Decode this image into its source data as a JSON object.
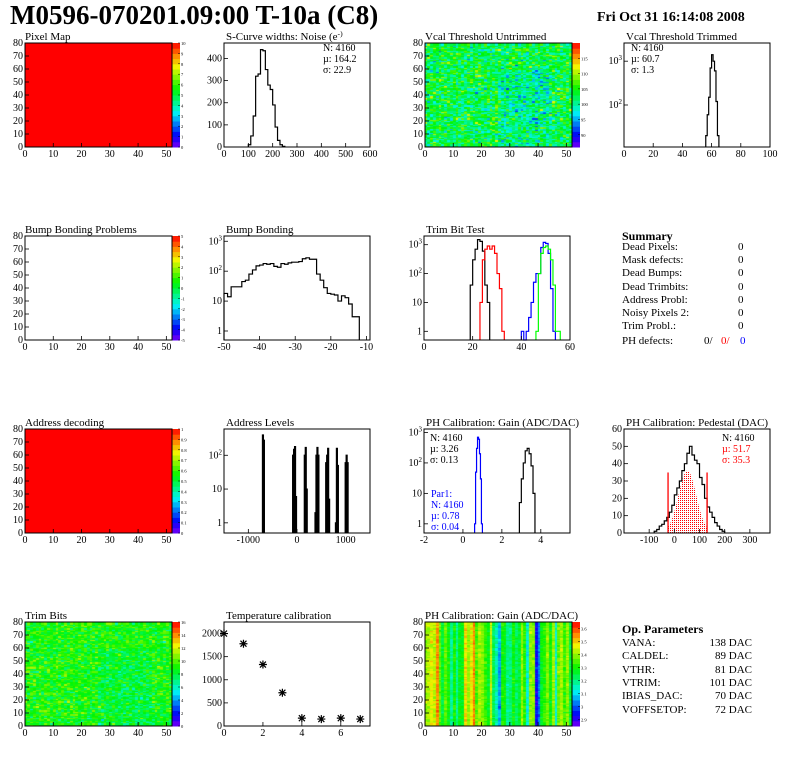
{
  "header": {
    "title": "M0596-070201.09:00 T-10a (C8)",
    "date": "Fri Oct 31 16:14:08 2008"
  },
  "summary": {
    "title": "Summary",
    "rows": [
      {
        "label": "Dead Pixels:",
        "value": "0"
      },
      {
        "label": "Mask defects:",
        "value": "0"
      },
      {
        "label": "Dead Bumps:",
        "value": "0"
      },
      {
        "label": "Dead Trimbits:",
        "value": "0"
      },
      {
        "label": "Address Probl:",
        "value": "0"
      },
      {
        "label": "Noisy Pixels 2:",
        "value": "0"
      },
      {
        "label": "Trim Probl.:",
        "value": "0"
      }
    ],
    "ph_defects": {
      "label": "PH defects:",
      "v1": "0/",
      "v2": "0/",
      "v3": "0",
      "c1": "#000000",
      "c2": "#ff0000",
      "c3": "#0000ff"
    }
  },
  "op_params": {
    "title": "Op. Parameters",
    "rows": [
      {
        "label": "VANA:",
        "value": "138 DAC"
      },
      {
        "label": "CALDEL:",
        "value": "89 DAC"
      },
      {
        "label": "VTHR:",
        "value": "81 DAC"
      },
      {
        "label": "VTRIM:",
        "value": "101 DAC"
      },
      {
        "label": "IBIAS_DAC:",
        "value": "70 DAC"
      },
      {
        "label": "VOFFSETOP:",
        "value": "72 DAC"
      }
    ]
  },
  "chart_data": [
    {
      "type": "heatmap",
      "title": "Pixel Map",
      "xlim": [
        0,
        52
      ],
      "ylim": [
        0,
        80
      ],
      "zlim": [
        0,
        10
      ],
      "fill": "uniform",
      "value": 10,
      "xticks": [
        "0",
        "10",
        "20",
        "30",
        "40",
        "50"
      ],
      "yticks": [
        "0",
        "10",
        "20",
        "30",
        "40",
        "50",
        "60",
        "70",
        "80"
      ],
      "zticks": [
        "0",
        "1",
        "2",
        "3",
        "4",
        "5",
        "6",
        "7",
        "8",
        "9",
        "10"
      ]
    },
    {
      "type": "bar",
      "title": "S-Curve widths: Noise (e^-)",
      "xlim": [
        0,
        600
      ],
      "ylim": [
        0,
        470
      ],
      "log": false,
      "xticks": [
        "0",
        "100",
        "200",
        "300",
        "400",
        "500",
        "600"
      ],
      "yticks": [
        "0",
        "100",
        "200",
        "300",
        "400"
      ],
      "series": [
        {
          "color": "#000000",
          "x0": 100,
          "binw": 10,
          "counts": [
            10,
            50,
            140,
            320,
            330,
            440,
            435,
            350,
            280,
            260,
            190,
            90,
            30,
            10,
            3
          ]
        }
      ],
      "stats": [
        {
          "text": "N: 4160",
          "color": "#000000"
        },
        {
          "text": "µ: 164.2",
          "color": "#000000"
        },
        {
          "text": "σ: 22.9",
          "color": "#000000"
        }
      ]
    },
    {
      "type": "heatmap",
      "title": "Vcal Threshold Untrimmed",
      "xlim": [
        0,
        52
      ],
      "ylim": [
        0,
        80
      ],
      "zlim": [
        86,
        120
      ],
      "fill": "noisy",
      "mean": 103,
      "spread": 5,
      "xticks": [
        "0",
        "10",
        "20",
        "30",
        "40",
        "50"
      ],
      "yticks": [
        "0",
        "10",
        "20",
        "30",
        "40",
        "50",
        "60",
        "70",
        "80"
      ],
      "zticks": [
        "90",
        "95",
        "100",
        "105",
        "110",
        "115"
      ]
    },
    {
      "type": "bar",
      "title": "Vcal Threshold Trimmed",
      "xlim": [
        0,
        100
      ],
      "ylim": [
        11,
        2600
      ],
      "log": true,
      "xticks": [
        "0",
        "20",
        "40",
        "60",
        "80",
        "100"
      ],
      "yticks": [
        "10^2",
        "10^3"
      ],
      "series": [
        {
          "color": "#000000",
          "x0": 56,
          "binw": 1,
          "counts": [
            20,
            60,
            150,
            700,
            1400,
            1000,
            600,
            120,
            20
          ]
        }
      ],
      "stats": [
        {
          "text": "N: 4160",
          "color": "#000000"
        },
        {
          "text": "µ: 60.7",
          "color": "#000000"
        },
        {
          "text": "σ:  1.3",
          "color": "#000000"
        }
      ]
    },
    {
      "type": "heatmap",
      "title": "Bump Bonding Problems",
      "xlim": [
        0,
        52
      ],
      "ylim": [
        0,
        80
      ],
      "zlim": [
        -5,
        5
      ],
      "fill": "empty",
      "xticks": [
        "0",
        "10",
        "20",
        "30",
        "40",
        "50"
      ],
      "yticks": [
        "0",
        "10",
        "20",
        "30",
        "40",
        "50",
        "60",
        "70",
        "80"
      ],
      "zticks": [
        "-5",
        "-4",
        "-3",
        "-2",
        "-1",
        "0",
        "1",
        "2",
        "3",
        "4",
        "5"
      ]
    },
    {
      "type": "bar",
      "title": "Bump Bonding",
      "xlim": [
        -50,
        -9
      ],
      "ylim": [
        0.5,
        1500
      ],
      "log": true,
      "xticks": [
        "-50",
        "-40",
        "-30",
        "-20",
        "-10"
      ],
      "yticks": [
        "1",
        "10",
        "10^2",
        "10^3"
      ],
      "series": [
        {
          "color": "#000000",
          "x0": -50,
          "binw": 1,
          "counts": [
            18,
            14,
            30,
            30,
            30,
            45,
            50,
            80,
            110,
            150,
            160,
            180,
            170,
            180,
            145,
            135,
            180,
            170,
            190,
            200,
            200,
            210,
            260,
            280,
            250,
            250,
            80,
            50,
            28,
            18,
            17,
            16,
            10,
            15,
            13,
            8,
            3,
            3
          ]
        }
      ]
    },
    {
      "type": "bar",
      "title": "Trim Bit Test",
      "xlim": [
        0,
        60
      ],
      "ylim": [
        0.5,
        2000
      ],
      "log": true,
      "xticks": [
        "0",
        "20",
        "40",
        "60"
      ],
      "yticks": [
        "1",
        "10",
        "10^2",
        "10^3"
      ],
      "series": [
        {
          "color": "#000000",
          "x0": 19,
          "binw": 1,
          "counts": [
            40,
            300,
            700,
            1500,
            1300,
            600,
            40,
            10
          ]
        },
        {
          "color": "#ff0000",
          "x0": 23,
          "binw": 1,
          "counts": [
            10,
            300,
            700,
            900,
            700,
            900,
            500,
            100,
            30,
            1
          ]
        },
        {
          "color": "#0000ff",
          "x0": 40,
          "binw": 1,
          "counts": [
            1,
            0.5,
            1,
            3,
            10,
            50,
            100,
            100,
            800,
            1200,
            1100,
            500,
            30,
            1
          ]
        },
        {
          "color": "#00ff00",
          "x0": 46,
          "binw": 1,
          "counts": [
            1,
            100,
            500,
            800,
            900,
            700,
            300,
            40,
            1,
            1
          ]
        }
      ]
    },
    {
      "type": "heatmap",
      "title": "Address decoding",
      "xlim": [
        0,
        52
      ],
      "ylim": [
        0,
        80
      ],
      "zlim": [
        0,
        1
      ],
      "fill": "uniform",
      "value": 1,
      "xticks": [
        "0",
        "10",
        "20",
        "30",
        "40",
        "50"
      ],
      "yticks": [
        "0",
        "10",
        "20",
        "30",
        "40",
        "50",
        "60",
        "70",
        "80"
      ],
      "zticks": [
        "0",
        "0.1",
        "0.2",
        "0.3",
        "0.4",
        "0.5",
        "0.6",
        "0.7",
        "0.8",
        "0.9",
        "1"
      ]
    },
    {
      "type": "bar",
      "title": "Address Levels",
      "xlim": [
        -1500,
        1500
      ],
      "ylim": [
        0.5,
        600
      ],
      "log": true,
      "xticks": [
        "-1000",
        "0",
        "1000"
      ],
      "yticks": [
        "1",
        "10",
        "10^2"
      ],
      "spikes": {
        "color": "#000000",
        "binw": 20,
        "points": [
          [
            -700,
            400
          ],
          [
            -680,
            280
          ],
          [
            -80,
            100
          ],
          [
            -60,
            150
          ],
          [
            -40,
            180
          ],
          [
            -20,
            6
          ],
          [
            160,
            100
          ],
          [
            180,
            170
          ],
          [
            200,
            10
          ],
          [
            380,
            2
          ],
          [
            400,
            100
          ],
          [
            420,
            170
          ],
          [
            440,
            100
          ],
          [
            600,
            60
          ],
          [
            620,
            100
          ],
          [
            640,
            160
          ],
          [
            660,
            5
          ],
          [
            800,
            1
          ],
          [
            820,
            160
          ],
          [
            840,
            50
          ],
          [
            1000,
            60
          ],
          [
            1020,
            100
          ],
          [
            1040,
            60
          ]
        ]
      }
    },
    {
      "type": "bar",
      "title": "PH Calibration: Gain (ADC/DAC)",
      "xlim": [
        -2,
        5.5
      ],
      "ylim": [
        0.5,
        1300
      ],
      "log": true,
      "xticks": [
        "-2",
        "0",
        "2",
        "4"
      ],
      "yticks": [
        "1",
        "10",
        "10^2",
        "10^3"
      ],
      "series": [
        {
          "color": "#0000ff",
          "x0": 0.6,
          "binw": 0.05,
          "counts": [
            1,
            50,
            300,
            700,
            600,
            200,
            30,
            1
          ]
        },
        {
          "color": "#000000",
          "x0": 2.9,
          "binw": 0.1,
          "counts": [
            5,
            30,
            100,
            250,
            300,
            200,
            80,
            10
          ]
        }
      ],
      "stats": [
        {
          "text": "N: 4160",
          "color": "#000000"
        },
        {
          "text": "µ: 3.26",
          "color": "#000000"
        },
        {
          "text": "σ: 0.13",
          "color": "#000000"
        }
      ],
      "stats2": [
        {
          "text": "Par1:",
          "color": "#0000ff"
        },
        {
          "text": "N: 4160",
          "color": "#0000ff"
        },
        {
          "text": "µ: 0.78",
          "color": "#0000ff"
        },
        {
          "text": "σ: 0.04",
          "color": "#0000ff"
        }
      ]
    },
    {
      "type": "bar",
      "title": "PH Calibration: Pedestal (DAC)",
      "xlim": [
        -200,
        380
      ],
      "ylim": [
        0,
        60
      ],
      "log": false,
      "xticks": [
        "-100",
        "0",
        "100",
        "200",
        "300"
      ],
      "yticks": [
        "0",
        "10",
        "20",
        "30",
        "40",
        "50",
        "60"
      ],
      "series": [
        {
          "color": "#000000",
          "x0": -80,
          "binw": 10,
          "counts": [
            1,
            2,
            4,
            5,
            7,
            9,
            12,
            16,
            22,
            26,
            30,
            36,
            40,
            46,
            50,
            45,
            42,
            40,
            32,
            28,
            20,
            15,
            12,
            9,
            6,
            4,
            2,
            1
          ]
        }
      ],
      "fit": {
        "color": "#ff0000",
        "mean": 51.7,
        "sigma": 35.3,
        "peak": 36,
        "range": [
          -25,
          130
        ]
      },
      "stats": [
        {
          "text": "N: 4160",
          "color": "#000000"
        },
        {
          "text": "µ: 51.7",
          "color": "#ff0000"
        },
        {
          "text": "σ: 35.3",
          "color": "#ff0000"
        }
      ]
    },
    {
      "type": "heatmap",
      "title": "Trim Bits",
      "xlim": [
        0,
        52
      ],
      "ylim": [
        0,
        80
      ],
      "zlim": [
        0,
        16
      ],
      "fill": "noisy",
      "mean": 9,
      "spread": 1.6,
      "xticks": [
        "0",
        "10",
        "20",
        "30",
        "40",
        "50"
      ],
      "yticks": [
        "0",
        "10",
        "20",
        "30",
        "40",
        "50",
        "60",
        "70",
        "80"
      ],
      "zticks": [
        "0",
        "2",
        "4",
        "6",
        "8",
        "10",
        "12",
        "14",
        "16"
      ]
    },
    {
      "type": "scatter",
      "title": "Temperature calibration",
      "xlim": [
        0,
        7.5
      ],
      "ylim": [
        0,
        2250
      ],
      "marker": "star",
      "xticks": [
        "0",
        "2",
        "4",
        "6"
      ],
      "yticks": [
        "0",
        "500",
        "1000",
        "1500",
        "2000"
      ],
      "x": [
        0,
        1,
        2,
        3,
        4,
        5,
        6,
        7
      ],
      "y": [
        2000,
        1780,
        1330,
        720,
        170,
        150,
        170,
        150
      ]
    },
    {
      "type": "heatmap",
      "title": "PH Calibration: Gain (ADC/DAC)",
      "xlim": [
        0,
        52
      ],
      "ylim": [
        0,
        80
      ],
      "zlim": [
        2.85,
        3.65
      ],
      "fill": "columns",
      "mean": 3.3,
      "spread": 0.1,
      "xticks": [
        "0",
        "10",
        "20",
        "30",
        "40",
        "50"
      ],
      "yticks": [
        "0",
        "10",
        "20",
        "30",
        "40",
        "50",
        "60",
        "70",
        "80"
      ],
      "zticks": [
        "2.9",
        "3",
        "3.1",
        "3.2",
        "3.3",
        "3.4",
        "3.5",
        "3.6"
      ]
    }
  ]
}
